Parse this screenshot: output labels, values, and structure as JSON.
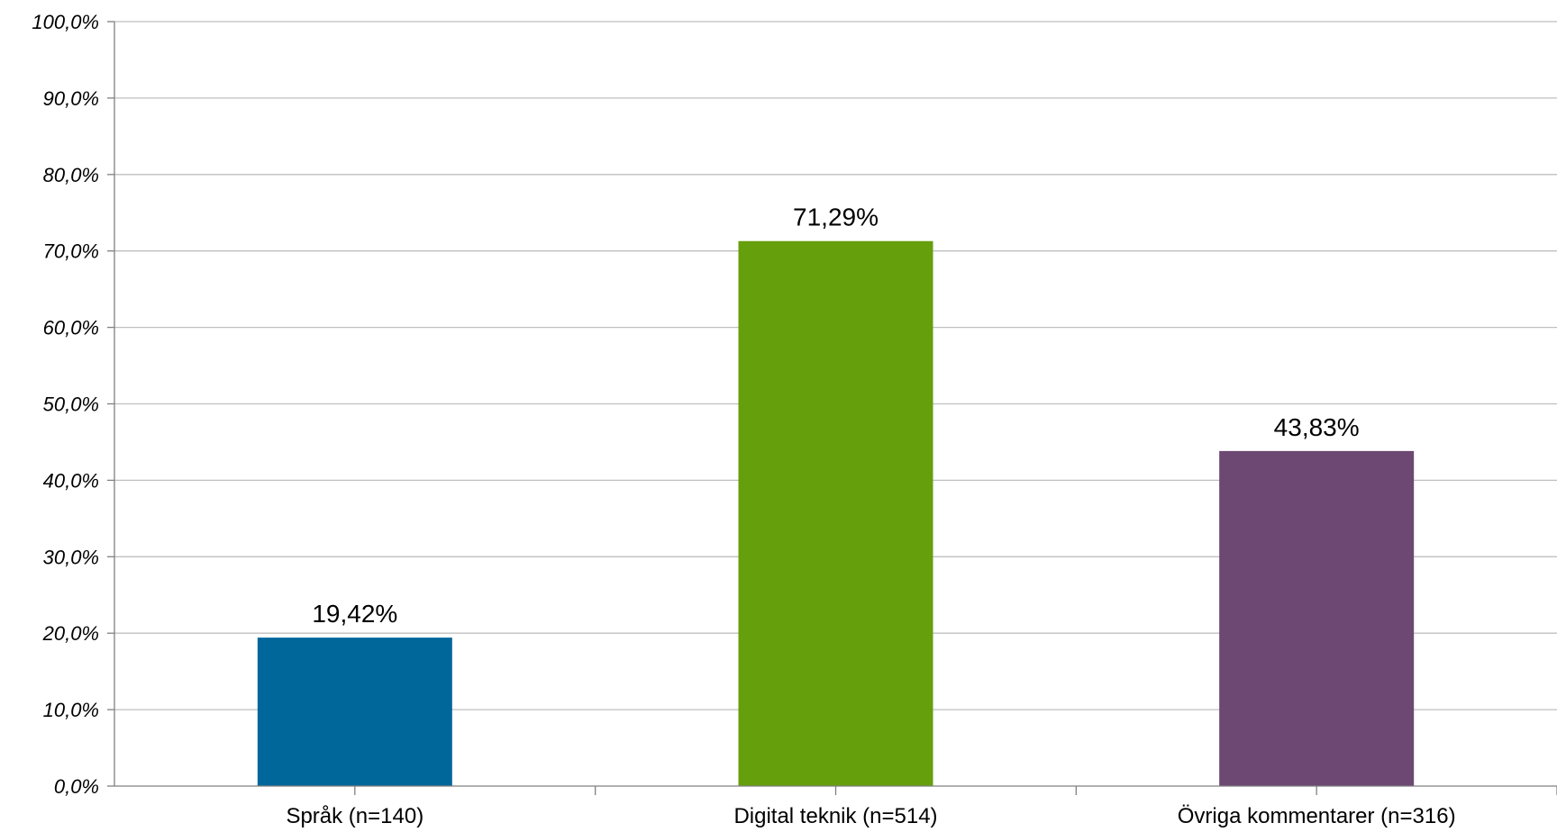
{
  "chart_data": {
    "type": "bar",
    "categories": [
      "Språk (n=140)",
      "Digital teknik (n=514)",
      "Övriga kommentarer (n=316)"
    ],
    "values": [
      19.42,
      71.29,
      43.83
    ],
    "data_labels": [
      "19,42%",
      "71,29%",
      "43,83%"
    ],
    "colors": [
      "#00679A",
      "#659F0C",
      "#6D4873"
    ],
    "ylim": [
      0,
      100
    ],
    "yticks": [
      0,
      10,
      20,
      30,
      40,
      50,
      60,
      70,
      80,
      90,
      100
    ],
    "ytick_labels": [
      "0,0%",
      "10,0%",
      "20,0%",
      "30,0%",
      "40,0%",
      "50,0%",
      "60,0%",
      "70,0%",
      "80,0%",
      "90,0%",
      "100,0%"
    ],
    "grid": true,
    "grid_color": "#BFBFBF",
    "axis_color": "#808080",
    "title": "",
    "xlabel": "",
    "ylabel": ""
  }
}
